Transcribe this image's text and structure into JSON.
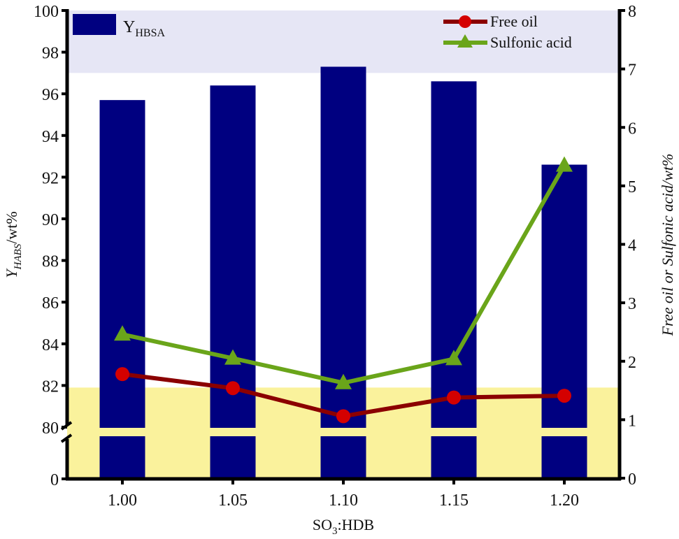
{
  "chart_data": {
    "type": "bar+line",
    "title": "",
    "xlabel": "SO3:HDB",
    "xlabel_main": "SO",
    "xlabel_sub": "3",
    "xlabel_tail": ":HDB",
    "ylabel_left": "Y_HABS/wt%",
    "ylabel_left_main": "Y",
    "ylabel_left_sub": "HABS",
    "ylabel_left_tail": "/wt%",
    "ylabel_right": "Free oil or Sulfonic acid/wt%",
    "categories": [
      "1.00",
      "1.05",
      "1.10",
      "1.15",
      "1.20"
    ],
    "y_left": {
      "range": [
        0,
        100
      ],
      "broken_axis": true,
      "break_between": [
        0,
        80
      ],
      "ticks": [
        "0",
        "80",
        "82",
        "84",
        "86",
        "88",
        "90",
        "92",
        "94",
        "96",
        "98",
        "100"
      ]
    },
    "y_right": {
      "range": [
        0,
        8
      ],
      "ticks": [
        "0",
        "1",
        "2",
        "3",
        "4",
        "5",
        "6",
        "7",
        "8"
      ]
    },
    "series": [
      {
        "name": "YHBSA",
        "legend_main": "Y",
        "legend_sub": "HBSA",
        "type": "bar",
        "axis": "left",
        "color": "#000080",
        "values": [
          95.7,
          96.4,
          97.3,
          96.6,
          92.6
        ]
      },
      {
        "name": "Free oil",
        "type": "line",
        "marker": "circle",
        "axis": "right",
        "line_color": "#8b0000",
        "marker_color": "#d40000",
        "values": [
          1.78,
          1.54,
          1.06,
          1.38,
          1.41
        ]
      },
      {
        "name": "Sulfonic acid",
        "type": "line",
        "marker": "triangle",
        "axis": "right",
        "line_color": "#6aa51a",
        "marker_color": "#6aa51a",
        "values": [
          2.46,
          2.05,
          1.63,
          2.04,
          5.35
        ]
      }
    ],
    "background_bands": [
      {
        "axis": "left",
        "from": 97.0,
        "to": 100,
        "color": "#e6e6f5"
      },
      {
        "axis": "left",
        "from": 0,
        "to": 81.9,
        "color": "#faf29c"
      }
    ],
    "legend_position": "top",
    "grid": false
  }
}
